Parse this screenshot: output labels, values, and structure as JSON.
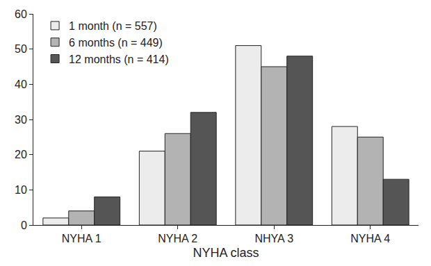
{
  "chart_data": {
    "type": "bar",
    "x_label": "NYHA class",
    "categories": [
      "NYHA 1",
      "NYHA 2",
      "NHYA 3",
      "NYHA 4"
    ],
    "series": [
      {
        "name": "1 month (n = 557)",
        "color": "#ececec",
        "values": [
          2,
          21,
          51,
          28
        ]
      },
      {
        "name": "6 months (n = 449)",
        "color": "#b3b3b3",
        "values": [
          4,
          26,
          45,
          25
        ]
      },
      {
        "name": "12 months (n = 414)",
        "color": "#555555",
        "values": [
          8,
          32,
          48,
          13
        ]
      }
    ],
    "ylim": [
      0,
      60
    ],
    "yticks": [
      0,
      10,
      20,
      30,
      40,
      50,
      60
    ],
    "grid": false,
    "legend": "top left"
  }
}
